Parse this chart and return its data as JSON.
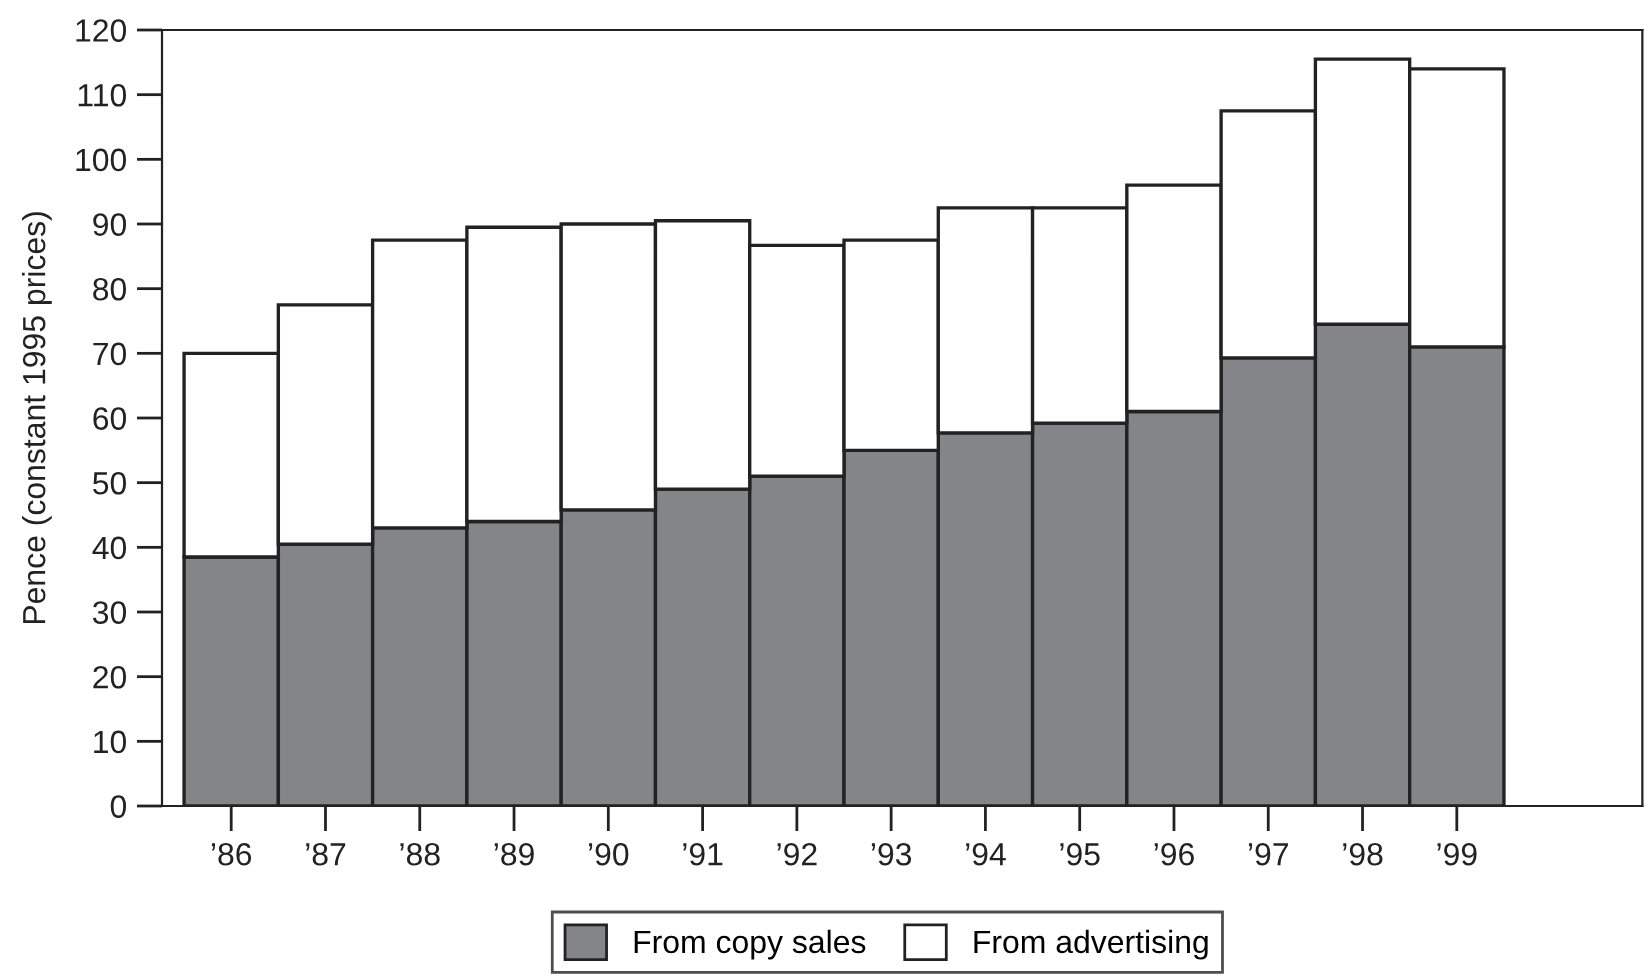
{
  "chart_data": {
    "type": "bar",
    "stacked": true,
    "ylabel": "Pence (constant 1995 prices)",
    "categories": [
      "’86",
      "’87",
      "’88",
      "’89",
      "’90",
      "’91",
      "’92",
      "’93",
      "’94",
      "’95",
      "’96",
      "’97",
      "’98",
      "’99"
    ],
    "series": [
      {
        "name": "From copy sales",
        "color": "#848589",
        "values": [
          38.5,
          40.5,
          43,
          44,
          45.8,
          49,
          51,
          55,
          57.7,
          59.2,
          61,
          69.3,
          74.5,
          71
        ]
      },
      {
        "name": "From advertising",
        "color": "#ffffff",
        "values": [
          31.5,
          37,
          44.5,
          45.5,
          44.2,
          41.5,
          35.7,
          32.5,
          34.8,
          33.3,
          35,
          38.2,
          41,
          43
        ]
      }
    ],
    "ylim": [
      0,
      120
    ],
    "yticks": [
      0,
      10,
      20,
      30,
      40,
      50,
      60,
      70,
      80,
      90,
      100,
      110,
      120
    ],
    "grid": false,
    "legend": "bottom"
  }
}
